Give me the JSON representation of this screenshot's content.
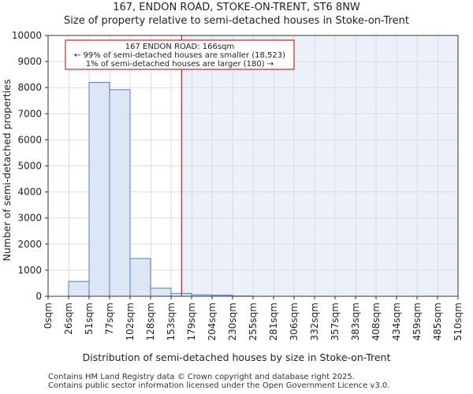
{
  "page": {
    "title_line1": "167, ENDON ROAD, STOKE-ON-TRENT, ST6 8NW",
    "title_line2": "Size of property relative to semi-detached houses in Stoke-on-Trent",
    "footer_line1": "Contains HM Land Registry data © Crown copyright and database right 2025.",
    "footer_line2": "Contains public sector information licensed under the Open Government Licence v3.0."
  },
  "colors": {
    "bar_fill": "#dce6f4",
    "bar_stroke": "#4f7fc2",
    "highlight_fill": "#ecf0f8",
    "marker": "#b00000",
    "annotation_border": "#b00000",
    "grid": "#dddddd",
    "axis": "#333333"
  },
  "chart_data": {
    "type": "bar",
    "xlabel": "Distribution of semi-detached houses by size in Stoke-on-Trent",
    "ylabel": "Number of semi-detached properties",
    "ylim": [
      0,
      10000
    ],
    "yticks": [
      0,
      1000,
      2000,
      3000,
      4000,
      5000,
      6000,
      7000,
      8000,
      9000,
      10000
    ],
    "bin_edges": [
      0,
      26,
      51,
      77,
      102,
      128,
      153,
      179,
      204,
      230,
      255,
      281,
      306,
      332,
      357,
      383,
      408,
      434,
      459,
      485,
      510
    ],
    "tick_labels": [
      "0sqm",
      "26sqm",
      "51sqm",
      "77sqm",
      "102sqm",
      "128sqm",
      "153sqm",
      "179sqm",
      "204sqm",
      "230sqm",
      "255sqm",
      "281sqm",
      "306sqm",
      "332sqm",
      "357sqm",
      "383sqm",
      "408sqm",
      "434sqm",
      "459sqm",
      "485sqm",
      "510sqm"
    ],
    "values": [
      0,
      570,
      8200,
      7920,
      1450,
      310,
      110,
      55,
      45,
      10,
      0,
      0,
      0,
      0,
      0,
      0,
      0,
      0,
      0,
      0
    ],
    "marker_value": 166,
    "annotation": {
      "line1": "167 ENDON ROAD: 166sqm",
      "line2": "← 99% of semi-detached houses are smaller (18,523)",
      "line3": "1% of semi-detached houses are larger (180) →"
    }
  }
}
